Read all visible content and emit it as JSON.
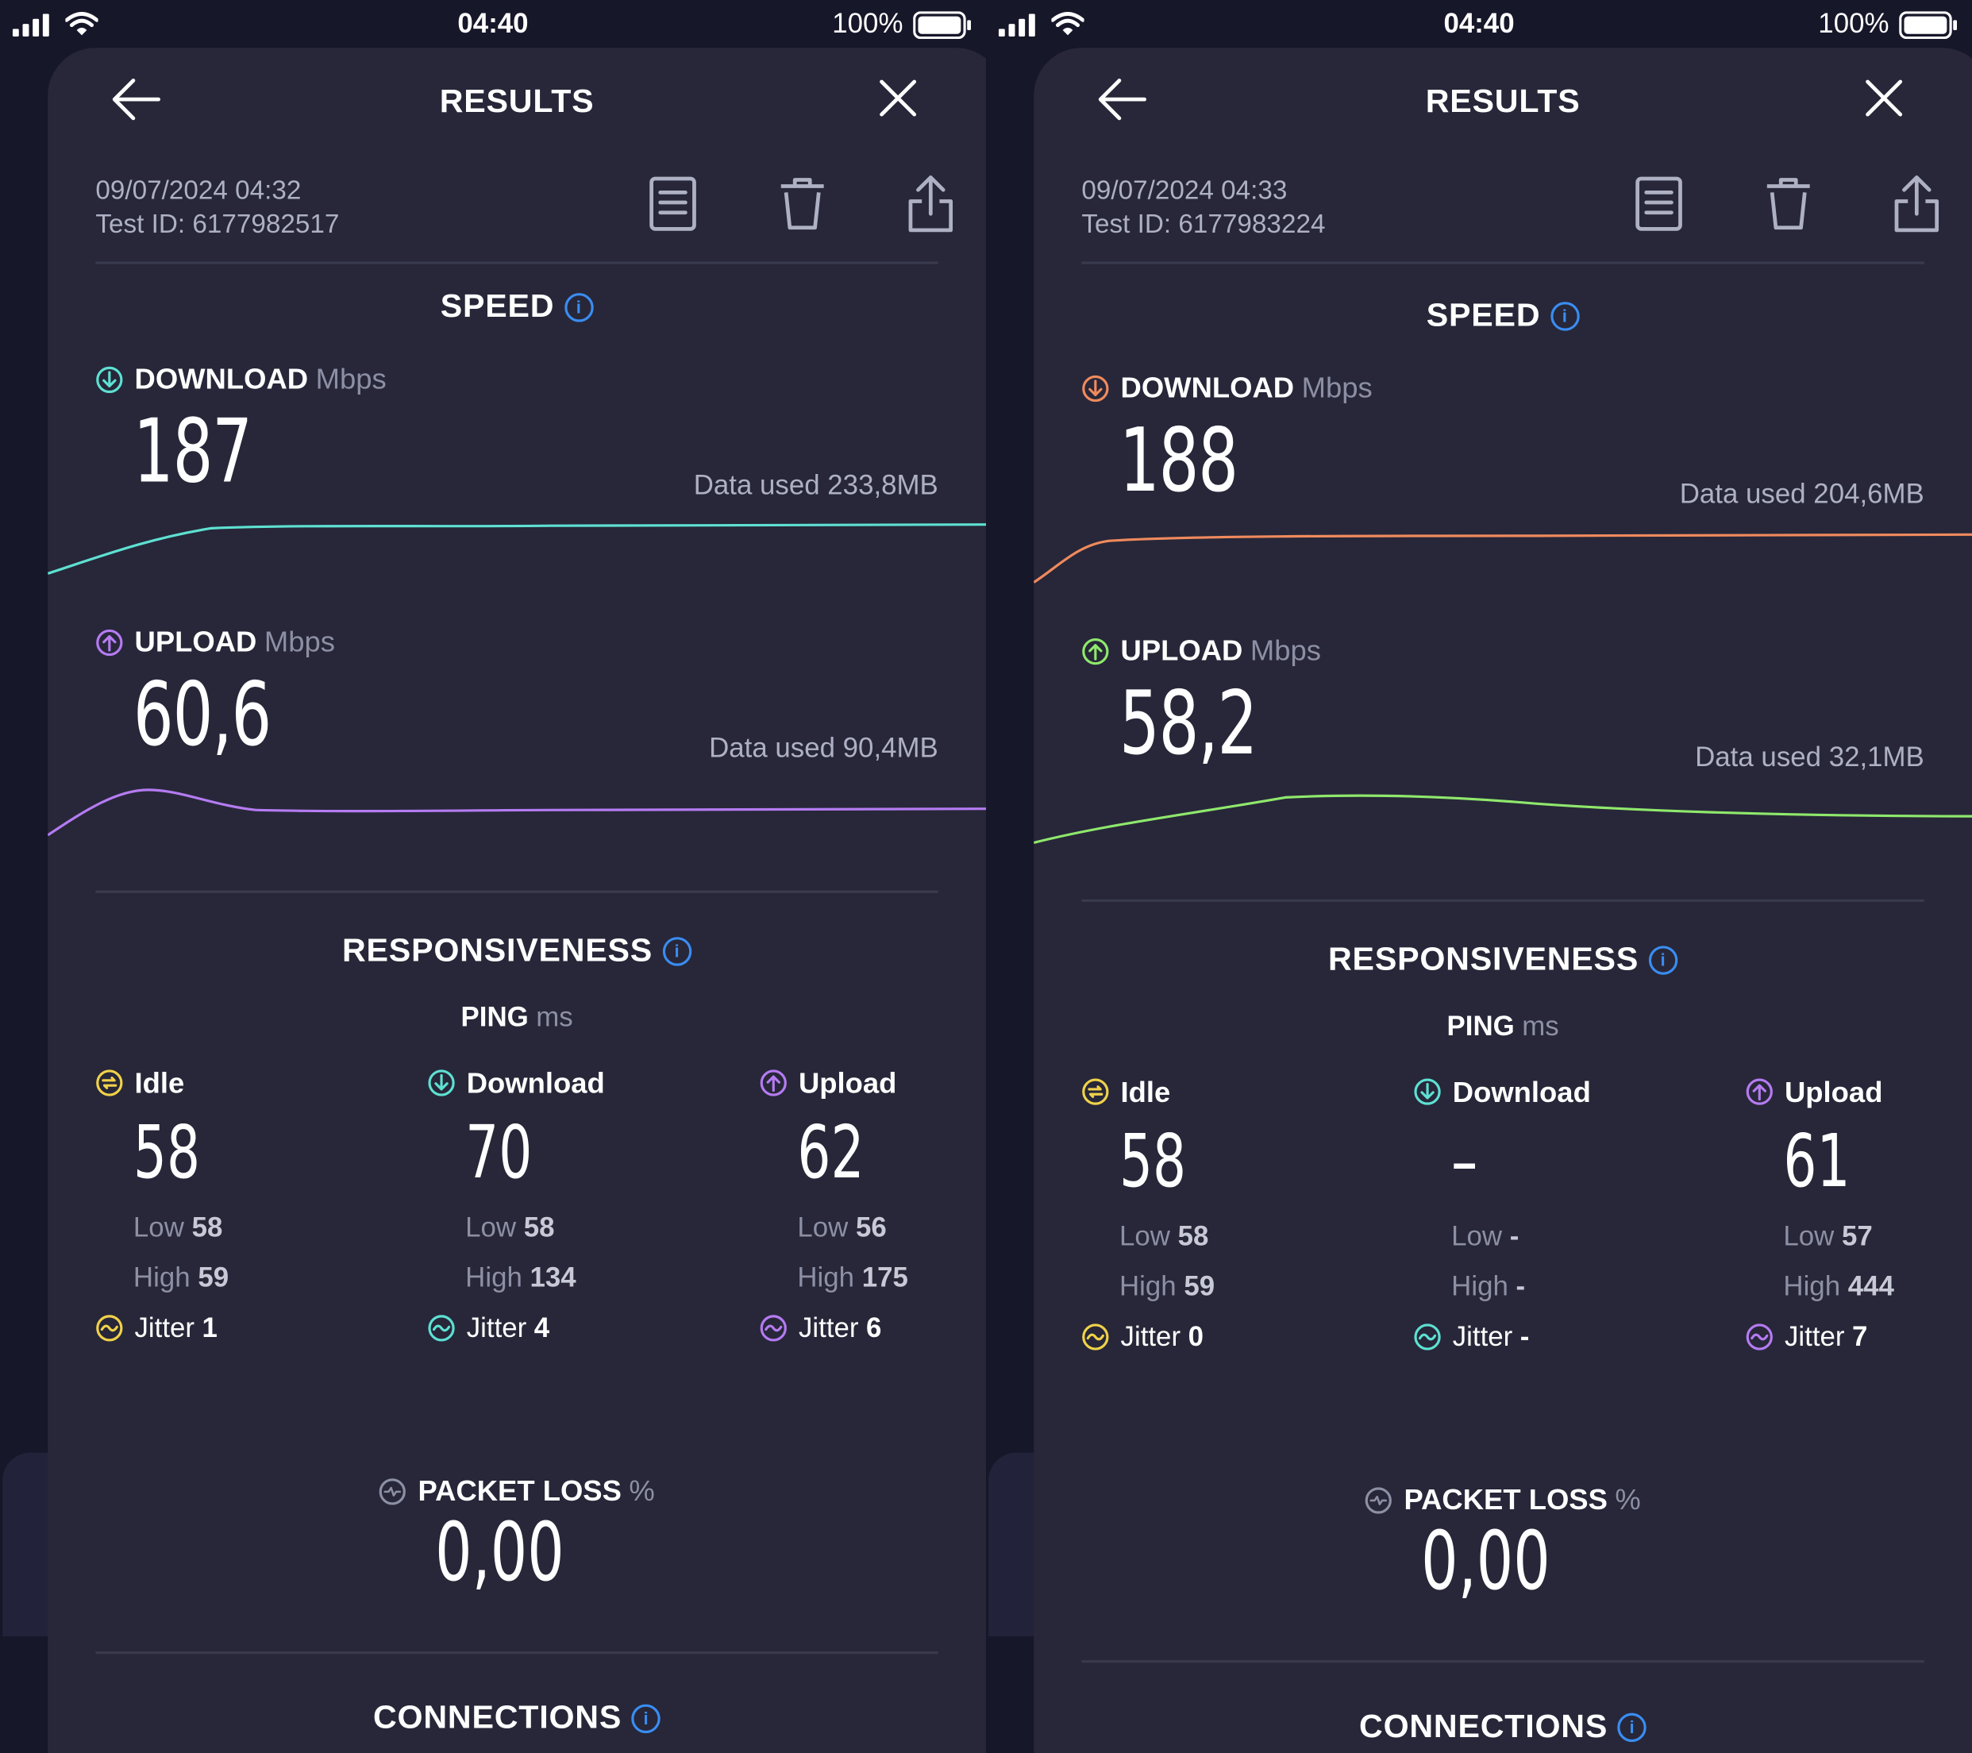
{
  "status": {
    "time": "04:40",
    "battery": "100%"
  },
  "screens": [
    {
      "title": "RESULTS",
      "date": "09/07/2024 04:32",
      "test_id": "Test ID: 6177982517",
      "speed_title": "SPEED",
      "download": {
        "label": "DOWNLOAD",
        "unit": "Mbps",
        "value": "187",
        "data_used": "Data used 233,8MB",
        "color": "#5ee0d2"
      },
      "upload": {
        "label": "UPLOAD",
        "unit": "Mbps",
        "value": "60,6",
        "data_used": "Data used 90,4MB",
        "color": "#b57bf2"
      },
      "responsiveness_title": "RESPONSIVENESS",
      "ping_label": "PING",
      "ping_unit": "ms",
      "ping": [
        {
          "label": "Idle",
          "value": "58",
          "low_label": "Low",
          "low": "58",
          "high_label": "High",
          "high": "59",
          "jitter_label": "Jitter",
          "jitter": "1",
          "color": "#f0d24a"
        },
        {
          "label": "Download",
          "value": "70",
          "low_label": "Low",
          "low": "58",
          "high_label": "High",
          "high": "134",
          "jitter_label": "Jitter",
          "jitter": "4",
          "color": "#5ee0d2"
        },
        {
          "label": "Upload",
          "value": "62",
          "low_label": "Low",
          "low": "56",
          "high_label": "High",
          "high": "175",
          "jitter_label": "Jitter",
          "jitter": "6",
          "color": "#b57bf2"
        }
      ],
      "packet_loss_label": "PACKET LOSS",
      "packet_loss_unit": "%",
      "packet_loss_value": "0,00",
      "connections_title": "CONNECTIONS"
    },
    {
      "title": "RESULTS",
      "date": "09/07/2024 04:33",
      "test_id": "Test ID: 6177983224",
      "speed_title": "SPEED",
      "download": {
        "label": "DOWNLOAD",
        "unit": "Mbps",
        "value": "188",
        "data_used": "Data used 204,6MB",
        "color": "#f08a5d"
      },
      "upload": {
        "label": "UPLOAD",
        "unit": "Mbps",
        "value": "58,2",
        "data_used": "Data used 32,1MB",
        "color": "#8fe86c"
      },
      "responsiveness_title": "RESPONSIVENESS",
      "ping_label": "PING",
      "ping_unit": "ms",
      "ping": [
        {
          "label": "Idle",
          "value": "58",
          "low_label": "Low",
          "low": "58",
          "high_label": "High",
          "high": "59",
          "jitter_label": "Jitter",
          "jitter": "0",
          "color": "#f0d24a"
        },
        {
          "label": "Download",
          "value": "–",
          "low_label": "Low",
          "low": "-",
          "high_label": "High",
          "high": "-",
          "jitter_label": "Jitter",
          "jitter": "-",
          "color": "#5ee0d2"
        },
        {
          "label": "Upload",
          "value": "61",
          "low_label": "Low",
          "low": "57",
          "high_label": "High",
          "high": "444",
          "jitter_label": "Jitter",
          "jitter": "7",
          "color": "#b57bf2"
        }
      ],
      "packet_loss_label": "PACKET LOSS",
      "packet_loss_unit": "%",
      "packet_loss_value": "0,00",
      "connections_title": "CONNECTIONS"
    }
  ]
}
